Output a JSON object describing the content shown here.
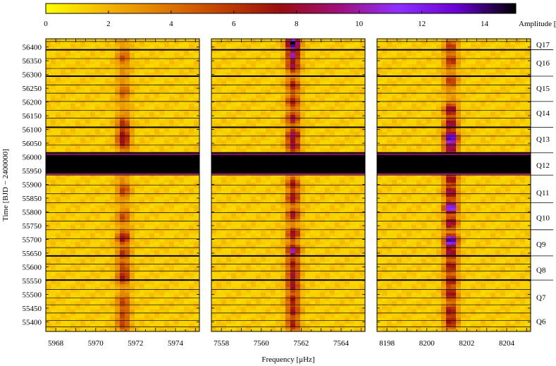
{
  "chart_data": {
    "type": "heatmap",
    "title": "",
    "colorbar": {
      "label": "Amplitude [mma]",
      "ticks": [
        0,
        2,
        4,
        6,
        8,
        10,
        12,
        14
      ],
      "range": [
        0,
        15.0
      ],
      "colors": [
        "#ffff00",
        "#f5b700",
        "#e07a00",
        "#c24000",
        "#9a0d10",
        "#a0107a",
        "#8f30ff",
        "#6a00d0",
        "#000000"
      ]
    },
    "ylabel": "Time [BJD − 2400000]",
    "xlabel": "Frequency [μHz]",
    "ylim": [
      55365,
      56430
    ],
    "yticks": [
      55400,
      55450,
      55500,
      55550,
      55600,
      55650,
      55700,
      55750,
      55800,
      55850,
      55900,
      55950,
      56000,
      56050,
      56100,
      56150,
      56200,
      56250,
      56300,
      56350,
      56400
    ],
    "gap": [
      55938,
      56010
    ],
    "quarters": [
      {
        "label": "Q6",
        "y": 55402
      },
      {
        "label": "Q7",
        "y": 55490
      },
      {
        "label": "Q8",
        "y": 55590
      },
      {
        "label": "Q9",
        "y": 55683
      },
      {
        "label": "Q10",
        "y": 55780
      },
      {
        "label": "Q11",
        "y": 55870
      },
      {
        "label": "Q12",
        "y": 55970
      },
      {
        "label": "Q13",
        "y": 56065
      },
      {
        "label": "Q14",
        "y": 56160
      },
      {
        "label": "Q15",
        "y": 56250
      },
      {
        "label": "Q16",
        "y": 56343
      },
      {
        "label": "Q17",
        "y": 56410
      }
    ],
    "quarter_boundaries": [
      55552,
      55640,
      55735,
      55833,
      55934,
      56015,
      56108,
      56202,
      56294,
      56390
    ],
    "thick_boundaries": [
      55552,
      55640,
      56015,
      56108,
      56294,
      56390
    ],
    "month_boundaries": [
      55382,
      55405,
      55432,
      55462,
      55487,
      55518,
      55552,
      55585,
      55610,
      55640,
      55670,
      55703,
      55735,
      55767,
      55797,
      55833,
      55866,
      55898,
      55934,
      56015,
      56043,
      56076,
      56108,
      56141,
      56170,
      56202,
      56232,
      56262,
      56294,
      56322,
      56358,
      56390,
      56420
    ],
    "panels": [
      {
        "xlim": [
          5967.5,
          5975.2
        ],
        "xticks": [
          5968,
          5970,
          5972,
          5974
        ],
        "center": 5971.4,
        "peaks": [
          {
            "t": 55390,
            "amp": 3.2
          },
          {
            "t": 55430,
            "amp": 2.5
          },
          {
            "t": 55470,
            "amp": 3.0
          },
          {
            "t": 55560,
            "amp": 4.8
          },
          {
            "t": 55600,
            "amp": 3.0
          },
          {
            "t": 55650,
            "amp": 3.5
          },
          {
            "t": 55705,
            "amp": 5.5
          },
          {
            "t": 55780,
            "amp": 2.6
          },
          {
            "t": 55880,
            "amp": 3.2
          },
          {
            "t": 56050,
            "amp": 4.5
          },
          {
            "t": 56080,
            "amp": 4.2
          },
          {
            "t": 56120,
            "amp": 4.0
          },
          {
            "t": 56240,
            "amp": 2.0
          },
          {
            "t": 56360,
            "amp": 2.2
          }
        ]
      },
      {
        "xlim": [
          7557.5,
          7565.2
        ],
        "xticks": [
          7558,
          7560,
          7562,
          7564
        ],
        "center": 7561.6,
        "peaks": [
          {
            "t": 55390,
            "amp": 4.5
          },
          {
            "t": 55440,
            "amp": 4.8
          },
          {
            "t": 55480,
            "amp": 4.2
          },
          {
            "t": 55530,
            "amp": 5.5
          },
          {
            "t": 55570,
            "amp": 5.0
          },
          {
            "t": 55610,
            "amp": 4.5
          },
          {
            "t": 55660,
            "amp": 7.5
          },
          {
            "t": 55720,
            "amp": 5.5
          },
          {
            "t": 55790,
            "amp": 5.0
          },
          {
            "t": 55850,
            "amp": 5.2
          },
          {
            "t": 55900,
            "amp": 5.0
          },
          {
            "t": 56040,
            "amp": 6.0
          },
          {
            "t": 56080,
            "amp": 6.2
          },
          {
            "t": 56140,
            "amp": 5.5
          },
          {
            "t": 56200,
            "amp": 5.0
          },
          {
            "t": 56260,
            "amp": 4.8
          },
          {
            "t": 56330,
            "amp": 6.0
          },
          {
            "t": 56370,
            "amp": 7.0
          },
          {
            "t": 56412,
            "amp": 12.5
          }
        ]
      },
      {
        "xlim": [
          8197.5,
          8205.2
        ],
        "xticks": [
          8198,
          8200,
          8202,
          8204
        ],
        "center": 8201.2,
        "peaks": [
          {
            "t": 55400,
            "amp": 5.0
          },
          {
            "t": 55440,
            "amp": 5.2
          },
          {
            "t": 55500,
            "amp": 6.0
          },
          {
            "t": 55550,
            "amp": 5.2
          },
          {
            "t": 55600,
            "amp": 5.0
          },
          {
            "t": 55650,
            "amp": 6.5
          },
          {
            "t": 55695,
            "amp": 12.5
          },
          {
            "t": 55760,
            "amp": 6.5
          },
          {
            "t": 55815,
            "amp": 11.0
          },
          {
            "t": 55870,
            "amp": 7.0
          },
          {
            "t": 55920,
            "amp": 6.0
          },
          {
            "t": 56030,
            "amp": 6.8
          },
          {
            "t": 56070,
            "amp": 12.8
          },
          {
            "t": 56120,
            "amp": 6.5
          },
          {
            "t": 56170,
            "amp": 6.5
          },
          {
            "t": 56280,
            "amp": 3.5
          },
          {
            "t": 56350,
            "amp": 4.0
          },
          {
            "t": 56400,
            "amp": 3.5
          }
        ]
      }
    ]
  }
}
